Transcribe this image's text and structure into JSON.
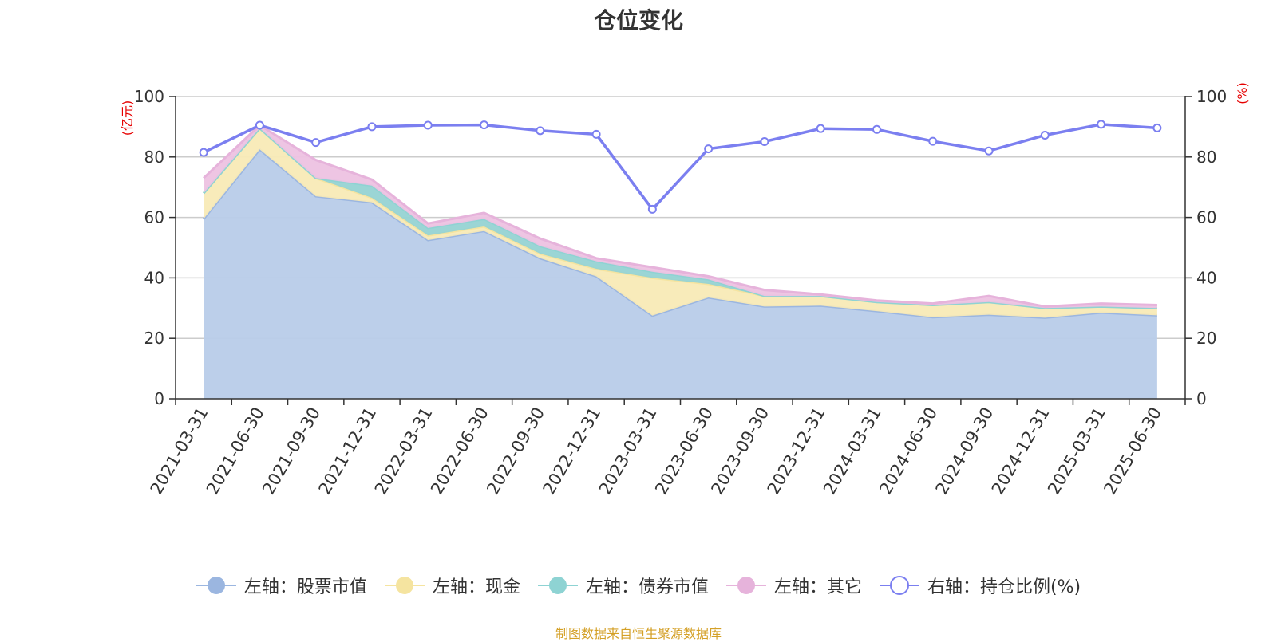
{
  "title": "仓位变化",
  "footer": "制图数据来自恒生聚源数据库",
  "chart_data": {
    "type": "area",
    "categories": [
      "2021-03-31",
      "2021-06-30",
      "2021-09-30",
      "2021-12-31",
      "2022-03-31",
      "2022-06-30",
      "2022-09-30",
      "2022-12-31",
      "2023-03-31",
      "2023-06-30",
      "2023-09-30",
      "2023-12-31",
      "2024-03-31",
      "2024-06-30",
      "2024-09-30",
      "2024-12-31",
      "2025-03-31",
      "2025-06-30"
    ],
    "left_axis": {
      "unit": "(亿元)",
      "ylim": [
        0,
        100
      ],
      "ticks": [
        0,
        20,
        40,
        60,
        80,
        100
      ]
    },
    "right_axis": {
      "unit": "(%)",
      "ylim": [
        0,
        100
      ],
      "ticks": [
        0,
        20,
        40,
        60,
        80,
        100
      ]
    },
    "stacked": true,
    "series": [
      {
        "name": "左轴：股票市值",
        "axis": "left",
        "color": "#9bb6e0",
        "fill": "#b8cce9",
        "values": [
          59.5,
          82.5,
          67.0,
          65.0,
          52.5,
          55.5,
          46.5,
          40.5,
          27.5,
          33.5,
          30.5,
          30.8,
          29.0,
          27.0,
          27.8,
          26.8,
          28.5,
          27.6
        ]
      },
      {
        "name": "左轴：现金",
        "axis": "left",
        "color": "#f5e4a0",
        "fill": "#f8eab6",
        "values": [
          8.5,
          7.0,
          6.0,
          1.5,
          1.5,
          1.5,
          1.5,
          2.5,
          12.5,
          4.5,
          3.5,
          3.2,
          3.0,
          4.0,
          4.2,
          3.2,
          2.0,
          2.4
        ]
      },
      {
        "name": "左轴：债券市值",
        "axis": "left",
        "color": "#8ed3d3",
        "fill": "#96d3d3",
        "values": [
          0,
          0,
          0,
          4.0,
          2.5,
          2.5,
          2.5,
          2.5,
          2.0,
          1.5,
          0,
          0,
          0,
          0,
          0,
          0,
          0,
          0
        ]
      },
      {
        "name": "左轴：其它",
        "axis": "left",
        "color": "#e6b3db",
        "fill": "#edc2e1",
        "values": [
          5.0,
          1.0,
          6.0,
          2.0,
          1.5,
          2.0,
          2.5,
          1.0,
          1.5,
          1.0,
          2.0,
          0.5,
          0.5,
          0.5,
          2.0,
          0.5,
          1.0,
          1.0
        ]
      },
      {
        "name": "右轴：持仓比例(%)",
        "axis": "right",
        "type": "line",
        "color": "#7b7ff0",
        "values": [
          81.5,
          90.5,
          84.8,
          90.0,
          90.5,
          90.6,
          88.7,
          87.5,
          62.7,
          82.7,
          85.1,
          89.4,
          89.1,
          85.2,
          82.0,
          87.2,
          90.8,
          89.6
        ]
      }
    ]
  }
}
